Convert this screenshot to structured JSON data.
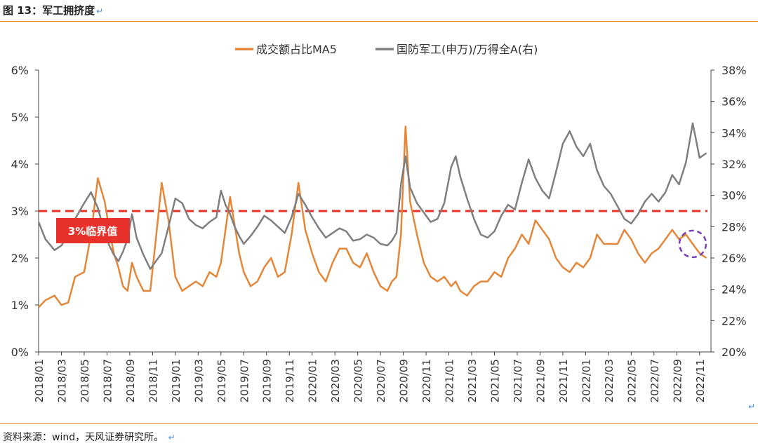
{
  "figure": {
    "label": "图 13：军工拥挤度",
    "source": "资料来源：wind，天风证券研究所。",
    "return_mark": "↵"
  },
  "chart_data": {
    "type": "line",
    "x_ticks": [
      "2018/01",
      "2018/03",
      "2018/05",
      "2018/07",
      "2018/09",
      "2018/11",
      "2019/01",
      "2019/03",
      "2019/05",
      "2019/07",
      "2019/09",
      "2019/11",
      "2020/01",
      "2020/03",
      "2020/05",
      "2020/07",
      "2020/09",
      "2020/11",
      "2021/01",
      "2021/03",
      "2021/05",
      "2021/07",
      "2021/09",
      "2021/11",
      "2022/01",
      "2022/03",
      "2022/05",
      "2022/07",
      "2022/09",
      "2022/11"
    ],
    "left_axis": {
      "ylim": [
        0,
        6
      ],
      "ticks": [
        "0%",
        "1%",
        "2%",
        "3%",
        "4%",
        "5%",
        "6%"
      ]
    },
    "right_axis": {
      "ylim": [
        20,
        38
      ],
      "ticks": [
        "20%",
        "22%",
        "24%",
        "26%",
        "28%",
        "30%",
        "32%",
        "34%",
        "36%",
        "38%"
      ]
    },
    "legend": {
      "placement": "top",
      "items": [
        "成交额占比MA5",
        "国防军工(申万)/万得全A(右)"
      ]
    },
    "series": [
      {
        "name": "成交额占比MA5",
        "axis": "left",
        "color": "#e3873a",
        "t": [
          0,
          0.3,
          0.7,
          1,
          1.3,
          1.6,
          2,
          2.3,
          2.6,
          2.9,
          3.1,
          3.3,
          3.5,
          3.7,
          3.9,
          4.1,
          4.3,
          4.6,
          4.9,
          5.1,
          5.4,
          5.7,
          6,
          6.3,
          6.6,
          6.9,
          7.2,
          7.5,
          7.8,
          8,
          8.2,
          8.4,
          8.6,
          8.8,
          9,
          9.3,
          9.6,
          9.9,
          10.2,
          10.5,
          10.8,
          11.1,
          11.4,
          11.7,
          12,
          12.3,
          12.6,
          12.9,
          13.2,
          13.5,
          13.8,
          14.1,
          14.4,
          14.7,
          15,
          15.3,
          15.5,
          15.7,
          15.9,
          16.1,
          16.3,
          16.6,
          16.9,
          17.2,
          17.5,
          17.8,
          18.1,
          18.3,
          18.5,
          18.8,
          19.1,
          19.4,
          19.7,
          20,
          20.3,
          20.6,
          20.9,
          21.2,
          21.5,
          21.8,
          22.1,
          22.4,
          22.7,
          23,
          23.3,
          23.6,
          23.9,
          24.2,
          24.5,
          24.8,
          25.1,
          25.4,
          25.7,
          26,
          26.3,
          26.6,
          26.9,
          27.2,
          27.5,
          27.8,
          28.1,
          28.4,
          28.7,
          29,
          29.3
        ],
        "values": [
          0.95,
          1.1,
          1.2,
          1,
          1.05,
          1.6,
          1.7,
          2.5,
          3.7,
          3.2,
          2.6,
          2.1,
          1.8,
          1.4,
          1.3,
          1.9,
          1.6,
          1.3,
          1.3,
          2.2,
          3.6,
          2.8,
          1.6,
          1.3,
          1.4,
          1.5,
          1.4,
          1.7,
          1.6,
          1.9,
          2.6,
          3.3,
          2.7,
          2.1,
          1.7,
          1.4,
          1.5,
          1.8,
          2,
          1.6,
          1.7,
          2.5,
          3.6,
          2.6,
          2.1,
          1.7,
          1.5,
          1.9,
          2.2,
          2.2,
          1.9,
          1.8,
          2.1,
          1.7,
          1.4,
          1.3,
          1.5,
          1.6,
          2.5,
          4.8,
          3.2,
          2.5,
          1.9,
          1.6,
          1.5,
          1.6,
          1.4,
          1.5,
          1.3,
          1.2,
          1.4,
          1.5,
          1.5,
          1.7,
          1.6,
          2,
          2.2,
          2.5,
          2.3,
          2.8,
          2.6,
          2.4,
          2,
          1.8,
          1.7,
          1.9,
          1.8,
          2,
          2.5,
          2.3,
          2.3,
          2.3,
          2.6,
          2.4,
          2.1,
          1.9,
          2.1,
          2.2,
          2.4,
          2.6,
          2.4,
          2.5,
          2.3,
          2.1,
          2
        ]
      },
      {
        "name": "国防军工(申万)/万得全A(右)",
        "axis": "right",
        "color": "#7f7f7f",
        "t": [
          0,
          0.3,
          0.7,
          1,
          1.3,
          1.6,
          2,
          2.3,
          2.6,
          2.9,
          3.1,
          3.3,
          3.5,
          3.7,
          3.9,
          4.1,
          4.3,
          4.6,
          4.9,
          5.1,
          5.4,
          5.7,
          6,
          6.3,
          6.6,
          6.9,
          7.2,
          7.5,
          7.8,
          8,
          8.2,
          8.4,
          8.6,
          8.8,
          9,
          9.3,
          9.6,
          9.9,
          10.2,
          10.5,
          10.8,
          11.1,
          11.4,
          11.7,
          12,
          12.3,
          12.6,
          12.9,
          13.2,
          13.5,
          13.8,
          14.1,
          14.4,
          14.7,
          15,
          15.3,
          15.5,
          15.7,
          15.9,
          16.1,
          16.3,
          16.6,
          16.9,
          17.2,
          17.5,
          17.8,
          18.1,
          18.3,
          18.5,
          18.8,
          19.1,
          19.4,
          19.7,
          20,
          20.3,
          20.6,
          20.9,
          21.2,
          21.5,
          21.8,
          22.1,
          22.4,
          22.7,
          23,
          23.3,
          23.6,
          23.9,
          24.2,
          24.5,
          24.8,
          25.1,
          25.4,
          25.7,
          26,
          26.3,
          26.6,
          26.9,
          27.2,
          27.5,
          27.8,
          28.1,
          28.4,
          28.7,
          29,
          29.3
        ],
        "values": [
          28.3,
          27.2,
          26.5,
          26.8,
          27.5,
          28.5,
          29.5,
          30.2,
          29.2,
          27.6,
          26.8,
          26.2,
          25.8,
          26.4,
          27.2,
          28.8,
          27.3,
          26.2,
          25.3,
          25.7,
          26.3,
          28,
          29.8,
          29.5,
          28.5,
          28.1,
          27.9,
          28.3,
          28.6,
          30.3,
          29.4,
          28.8,
          28,
          27.4,
          26.9,
          27.4,
          28,
          28.7,
          28.4,
          28,
          27.6,
          28.6,
          30.1,
          29.4,
          28.6,
          27.9,
          27.3,
          27.6,
          27.9,
          27.7,
          27.1,
          27.2,
          27.5,
          27.3,
          26.9,
          26.8,
          27.1,
          27.6,
          30.7,
          32.5,
          30.5,
          29.5,
          28.9,
          28.3,
          28.5,
          29.5,
          31.8,
          32.5,
          31.2,
          29.8,
          28.5,
          27.5,
          27.3,
          27.7,
          28.7,
          29.4,
          29.1,
          30.8,
          32.3,
          31.1,
          30.3,
          29.8,
          31.5,
          33.3,
          34.1,
          33.1,
          32.5,
          33.3,
          31.6,
          30.6,
          30.1,
          29.3,
          28.5,
          28.2,
          28.8,
          29.6,
          30.1,
          29.6,
          30.2,
          31.3,
          30.7,
          32.1,
          34.6,
          32.4,
          32.7
        ]
      }
    ],
    "threshold": {
      "value": 3,
      "axis": "left",
      "label": "3%临界值",
      "color": "#e8312a"
    },
    "highlight": {
      "shape": "dashed-circle",
      "color": "#7a3fb8",
      "t": 28.7,
      "value": 2.3
    }
  }
}
